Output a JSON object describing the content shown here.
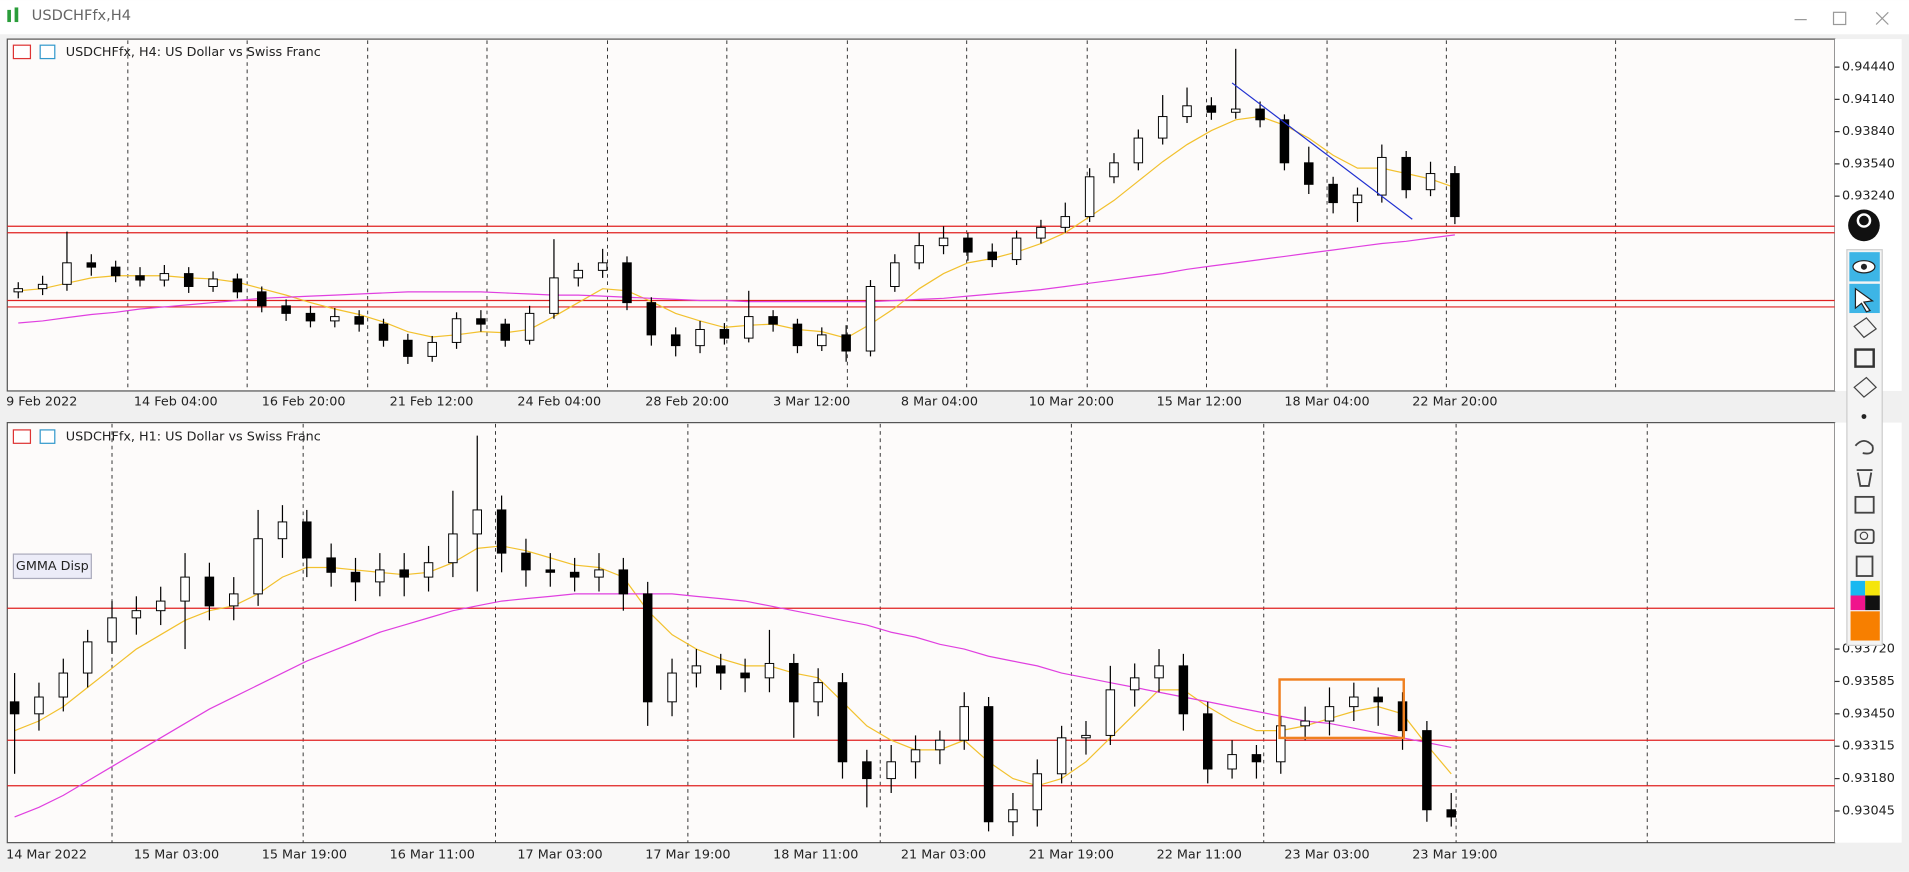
{
  "window": {
    "title": "USDCHFfx,H4"
  },
  "chart_data": [
    {
      "type": "candlestick",
      "label": "USDCHFfx, H4:  US Dollar vs Swiss Franc",
      "xlabels": [
        "9 Feb 2022",
        "14 Feb 04:00",
        "16 Feb 20:00",
        "21 Feb 12:00",
        "24 Feb 04:00",
        "28 Feb 20:00",
        "3 Mar 12:00",
        "8 Mar 04:00",
        "10 Mar 20:00",
        "15 Mar 12:00",
        "18 Mar 04:00",
        "22 Mar 20:00"
      ],
      "ylim": [
        0.9144,
        0.94689
      ],
      "yticks": [
        {
          "value": 0.9444,
          "label": "0.94440"
        },
        {
          "value": 0.9414,
          "label": "0.94140"
        },
        {
          "value": 0.9384,
          "label": "0.93840"
        },
        {
          "value": 0.9354,
          "label": "0.93540"
        },
        {
          "value": 0.9324,
          "label": "0.93240"
        }
      ],
      "ohlc": [
        [
          0.9235,
          0.9244,
          0.9229,
          0.9238
        ],
        [
          0.9238,
          0.925,
          0.9232,
          0.9242
        ],
        [
          0.9242,
          0.9291,
          0.9236,
          0.9262
        ],
        [
          0.9262,
          0.927,
          0.925,
          0.9258
        ],
        [
          0.9258,
          0.9264,
          0.9244,
          0.925
        ],
        [
          0.925,
          0.9258,
          0.924,
          0.9246
        ],
        [
          0.9246,
          0.926,
          0.924,
          0.9252
        ],
        [
          0.9252,
          0.9258,
          0.9234,
          0.924
        ],
        [
          0.924,
          0.9254,
          0.9235,
          0.9247
        ],
        [
          0.9247,
          0.9252,
          0.9229,
          0.9235
        ],
        [
          0.9235,
          0.924,
          0.9216,
          0.9222
        ],
        [
          0.9222,
          0.9228,
          0.9208,
          0.9215
        ],
        [
          0.9215,
          0.9222,
          0.9202,
          0.9208
        ],
        [
          0.9208,
          0.922,
          0.9202,
          0.9212
        ],
        [
          0.9212,
          0.9218,
          0.9198,
          0.9205
        ],
        [
          0.9205,
          0.921,
          0.9184,
          0.919
        ],
        [
          0.919,
          0.9196,
          0.9168,
          0.9175
        ],
        [
          0.9175,
          0.9194,
          0.917,
          0.9188
        ],
        [
          0.9188,
          0.9216,
          0.9182,
          0.921
        ],
        [
          0.921,
          0.9218,
          0.9198,
          0.9205
        ],
        [
          0.9205,
          0.921,
          0.9184,
          0.919
        ],
        [
          0.919,
          0.9222,
          0.9186,
          0.9215
        ],
        [
          0.9215,
          0.9284,
          0.921,
          0.9248
        ],
        [
          0.9248,
          0.9262,
          0.924,
          0.9255
        ],
        [
          0.9255,
          0.9275,
          0.9248,
          0.9262
        ],
        [
          0.9262,
          0.9268,
          0.9218,
          0.9225
        ],
        [
          0.9225,
          0.923,
          0.9185,
          0.9195
        ],
        [
          0.9195,
          0.9202,
          0.9175,
          0.9185
        ],
        [
          0.9185,
          0.9208,
          0.9178,
          0.92
        ],
        [
          0.92,
          0.9206,
          0.9186,
          0.9192
        ],
        [
          0.9192,
          0.9236,
          0.9188,
          0.9212
        ],
        [
          0.9212,
          0.9218,
          0.9198,
          0.9205
        ],
        [
          0.9205,
          0.921,
          0.9178,
          0.9185
        ],
        [
          0.9185,
          0.9202,
          0.918,
          0.9195
        ],
        [
          0.9195,
          0.9204,
          0.917,
          0.918
        ],
        [
          0.918,
          0.9246,
          0.9175,
          0.924
        ],
        [
          0.924,
          0.927,
          0.9235,
          0.9262
        ],
        [
          0.9262,
          0.929,
          0.9256,
          0.9278
        ],
        [
          0.9278,
          0.9296,
          0.927,
          0.9285
        ],
        [
          0.9285,
          0.929,
          0.9264,
          0.9272
        ],
        [
          0.9272,
          0.928,
          0.9258,
          0.9265
        ],
        [
          0.9265,
          0.9292,
          0.926,
          0.9285
        ],
        [
          0.9285,
          0.9302,
          0.928,
          0.9295
        ],
        [
          0.9295,
          0.9318,
          0.929,
          0.9305
        ],
        [
          0.9305,
          0.935,
          0.93,
          0.9342
        ],
        [
          0.9342,
          0.9364,
          0.9336,
          0.9355
        ],
        [
          0.9355,
          0.9386,
          0.9348,
          0.9378
        ],
        [
          0.9378,
          0.9418,
          0.9372,
          0.9398
        ],
        [
          0.9398,
          0.9425,
          0.9392,
          0.9408
        ],
        [
          0.9408,
          0.9416,
          0.9395,
          0.9402
        ],
        [
          0.9402,
          0.9461,
          0.9396,
          0.9405
        ],
        [
          0.9405,
          0.9412,
          0.9388,
          0.9395
        ],
        [
          0.9395,
          0.94,
          0.9348,
          0.9355
        ],
        [
          0.9355,
          0.937,
          0.9326,
          0.9335
        ],
        [
          0.9335,
          0.9342,
          0.9308,
          0.9318
        ],
        [
          0.9318,
          0.9332,
          0.93,
          0.9325
        ],
        [
          0.9325,
          0.9372,
          0.9318,
          0.936
        ],
        [
          0.936,
          0.9366,
          0.9322,
          0.933
        ],
        [
          0.933,
          0.9356,
          0.9324,
          0.9345
        ],
        [
          0.9345,
          0.9352,
          0.9298,
          0.9305
        ]
      ],
      "series": [
        {
          "color": "#f2c12e",
          "values": [
            0.9236,
            0.9238,
            0.9243,
            0.9248,
            0.925,
            0.925,
            0.925,
            0.9248,
            0.9247,
            0.9244,
            0.9238,
            0.9232,
            0.9225,
            0.9219,
            0.9214,
            0.9207,
            0.9198,
            0.9193,
            0.9195,
            0.9198,
            0.9197,
            0.92,
            0.9212,
            0.9225,
            0.9238,
            0.9236,
            0.9226,
            0.9215,
            0.9208,
            0.9202,
            0.9204,
            0.9205,
            0.92,
            0.9198,
            0.9192,
            0.9205,
            0.922,
            0.9238,
            0.9252,
            0.9262,
            0.9266,
            0.9272,
            0.928,
            0.929,
            0.9305,
            0.932,
            0.9338,
            0.9356,
            0.9372,
            0.9385,
            0.9395,
            0.9398,
            0.939,
            0.9378,
            0.9362,
            0.935,
            0.935,
            0.9345,
            0.934,
            0.9332
          ]
        },
        {
          "color": "#e040e0",
          "values": [
            0.9206,
            0.9208,
            0.9211,
            0.9214,
            0.9216,
            0.9219,
            0.9221,
            0.9223,
            0.9225,
            0.9227,
            0.9229,
            0.923,
            0.9231,
            0.9232,
            0.9233,
            0.9234,
            0.9235,
            0.9235,
            0.9235,
            0.9235,
            0.9234,
            0.9233,
            0.9232,
            0.9232,
            0.9231,
            0.923,
            0.9229,
            0.9228,
            0.9227,
            0.9227,
            0.9226,
            0.9226,
            0.9226,
            0.9226,
            0.9226,
            0.9226,
            0.9227,
            0.9228,
            0.9229,
            0.9231,
            0.9233,
            0.9235,
            0.9237,
            0.924,
            0.9243,
            0.9246,
            0.9249,
            0.9252,
            0.9256,
            0.9259,
            0.9262,
            0.9265,
            0.9268,
            0.9271,
            0.9274,
            0.9277,
            0.928,
            0.9282,
            0.9285,
            0.9288
          ]
        }
      ],
      "hlines": [
        0.9296,
        0.929,
        0.9227,
        0.9221
      ],
      "hline_color": "#e02020"
    },
    {
      "type": "candlestick",
      "label": "USDCHFfx, H1:  US Dollar vs Swiss Franc",
      "button": "GMMA Disp",
      "xlabels": [
        "14 Mar 2022",
        "15 Mar 03:00",
        "15 Mar 19:00",
        "16 Mar 11:00",
        "17 Mar 03:00",
        "17 Mar 19:00",
        "18 Mar 11:00",
        "21 Mar 03:00",
        "21 Mar 19:00",
        "22 Mar 11:00",
        "23 Mar 03:00",
        "23 Mar 19:00"
      ],
      "ylim": [
        0.92913,
        0.94659
      ],
      "yticks": [
        {
          "value": 0.9372,
          "label": "0.93720"
        },
        0.93585,
        {
          "value": 0.9345,
          "label": "0.93450"
        },
        0.93315,
        {
          "value": 0.9318,
          "label": "0.93180"
        },
        0.93045
      ],
      "ohlc": [
        [
          0.935,
          0.9362,
          0.932,
          0.9345
        ],
        [
          0.9345,
          0.9358,
          0.9338,
          0.9352
        ],
        [
          0.9352,
          0.9368,
          0.9346,
          0.9362
        ],
        [
          0.9362,
          0.938,
          0.9356,
          0.9375
        ],
        [
          0.9375,
          0.9392,
          0.937,
          0.9385
        ],
        [
          0.9385,
          0.9394,
          0.9378,
          0.9388
        ],
        [
          0.9388,
          0.9398,
          0.9382,
          0.9392
        ],
        [
          0.9392,
          0.9412,
          0.9372,
          0.9402
        ],
        [
          0.9402,
          0.9408,
          0.9384,
          0.939
        ],
        [
          0.939,
          0.9402,
          0.9384,
          0.9395
        ],
        [
          0.9395,
          0.943,
          0.939,
          0.9418
        ],
        [
          0.9418,
          0.9432,
          0.941,
          0.9425
        ],
        [
          0.9425,
          0.943,
          0.9402,
          0.941
        ],
        [
          0.941,
          0.9416,
          0.9398,
          0.9404
        ],
        [
          0.9404,
          0.941,
          0.9392,
          0.94
        ],
        [
          0.94,
          0.9412,
          0.9394,
          0.9405
        ],
        [
          0.9405,
          0.9412,
          0.9394,
          0.9402
        ],
        [
          0.9402,
          0.9415,
          0.9396,
          0.9408
        ],
        [
          0.9408,
          0.9438,
          0.9402,
          0.942
        ],
        [
          0.942,
          0.9461,
          0.9396,
          0.943
        ],
        [
          0.943,
          0.9436,
          0.9404,
          0.9412
        ],
        [
          0.9412,
          0.9418,
          0.9398,
          0.9405
        ],
        [
          0.9405,
          0.9412,
          0.9398,
          0.9404
        ],
        [
          0.9404,
          0.941,
          0.9396,
          0.9402
        ],
        [
          0.9402,
          0.9412,
          0.9396,
          0.9405
        ],
        [
          0.9405,
          0.941,
          0.9388,
          0.9395
        ],
        [
          0.9395,
          0.94,
          0.934,
          0.935
        ],
        [
          0.935,
          0.9368,
          0.9344,
          0.9362
        ],
        [
          0.9362,
          0.9372,
          0.9356,
          0.9365
        ],
        [
          0.9365,
          0.937,
          0.9355,
          0.9362
        ],
        [
          0.9362,
          0.9368,
          0.9354,
          0.936
        ],
        [
          0.936,
          0.938,
          0.9354,
          0.9366
        ],
        [
          0.9366,
          0.937,
          0.9335,
          0.935
        ],
        [
          0.935,
          0.9364,
          0.9344,
          0.9358
        ],
        [
          0.9358,
          0.9362,
          0.9318,
          0.9325
        ],
        [
          0.9325,
          0.933,
          0.9306,
          0.9318
        ],
        [
          0.9318,
          0.9332,
          0.9312,
          0.9325
        ],
        [
          0.9325,
          0.9336,
          0.9318,
          0.933
        ],
        [
          0.933,
          0.9338,
          0.9324,
          0.9334
        ],
        [
          0.9334,
          0.9354,
          0.933,
          0.9348
        ],
        [
          0.9348,
          0.9352,
          0.9296,
          0.93
        ],
        [
          0.93,
          0.9312,
          0.9294,
          0.9305
        ],
        [
          0.9305,
          0.9326,
          0.9298,
          0.932
        ],
        [
          0.932,
          0.934,
          0.9316,
          0.9335
        ],
        [
          0.9335,
          0.9342,
          0.9328,
          0.9336
        ],
        [
          0.9336,
          0.9365,
          0.9332,
          0.9355
        ],
        [
          0.9355,
          0.9366,
          0.9348,
          0.936
        ],
        [
          0.936,
          0.9372,
          0.9354,
          0.9365
        ],
        [
          0.9365,
          0.937,
          0.9338,
          0.9345
        ],
        [
          0.9345,
          0.935,
          0.9316,
          0.9322
        ],
        [
          0.9322,
          0.9334,
          0.9318,
          0.9328
        ],
        [
          0.9328,
          0.9332,
          0.9318,
          0.9325
        ],
        [
          0.9325,
          0.9344,
          0.932,
          0.934
        ],
        [
          0.934,
          0.9348,
          0.9334,
          0.9342
        ],
        [
          0.9342,
          0.9356,
          0.9336,
          0.9348
        ],
        [
          0.9348,
          0.9358,
          0.9342,
          0.9352
        ],
        [
          0.9352,
          0.9356,
          0.934,
          0.935
        ],
        [
          0.935,
          0.9354,
          0.933,
          0.9338
        ],
        [
          0.9338,
          0.9342,
          0.93,
          0.9305
        ],
        [
          0.9305,
          0.9312,
          0.9298,
          0.9302
        ]
      ],
      "series": [
        {
          "color": "#f2c12e",
          "values": [
            0.9338,
            0.9342,
            0.9348,
            0.9356,
            0.9364,
            0.9372,
            0.9378,
            0.9384,
            0.9388,
            0.939,
            0.9395,
            0.9402,
            0.9406,
            0.9406,
            0.9405,
            0.9404,
            0.9403,
            0.9404,
            0.9408,
            0.9414,
            0.9415,
            0.9413,
            0.941,
            0.9407,
            0.9406,
            0.9402,
            0.9388,
            0.9378,
            0.9372,
            0.9368,
            0.9365,
            0.9365,
            0.9362,
            0.936,
            0.935,
            0.934,
            0.9334,
            0.933,
            0.933,
            0.9334,
            0.9325,
            0.9318,
            0.9315,
            0.9318,
            0.9325,
            0.9335,
            0.9345,
            0.9355,
            0.9355,
            0.9348,
            0.9342,
            0.9338,
            0.9338,
            0.934,
            0.9343,
            0.9346,
            0.9348,
            0.9345,
            0.9332,
            0.932
          ]
        },
        {
          "color": "#e040e0",
          "values": [
            0.9302,
            0.9306,
            0.9311,
            0.9317,
            0.9323,
            0.9329,
            0.9335,
            0.9341,
            0.9347,
            0.9352,
            0.9357,
            0.9362,
            0.9367,
            0.9371,
            0.9375,
            0.9379,
            0.9382,
            0.9385,
            0.9388,
            0.939,
            0.9392,
            0.9393,
            0.9394,
            0.9395,
            0.9395,
            0.9395,
            0.9395,
            0.9395,
            0.9394,
            0.9393,
            0.9392,
            0.939,
            0.9388,
            0.9386,
            0.9384,
            0.9382,
            0.9379,
            0.9377,
            0.9374,
            0.9372,
            0.9369,
            0.9367,
            0.9365,
            0.9362,
            0.936,
            0.9358,
            0.9356,
            0.9354,
            0.9352,
            0.935,
            0.9348,
            0.9346,
            0.9344,
            0.9342,
            0.9341,
            0.9339,
            0.9337,
            0.9335,
            0.9333,
            0.9331
          ]
        }
      ],
      "hlines": [
        0.9389,
        0.9334,
        0.9315
      ],
      "hline_color": "#e02020"
    }
  ]
}
